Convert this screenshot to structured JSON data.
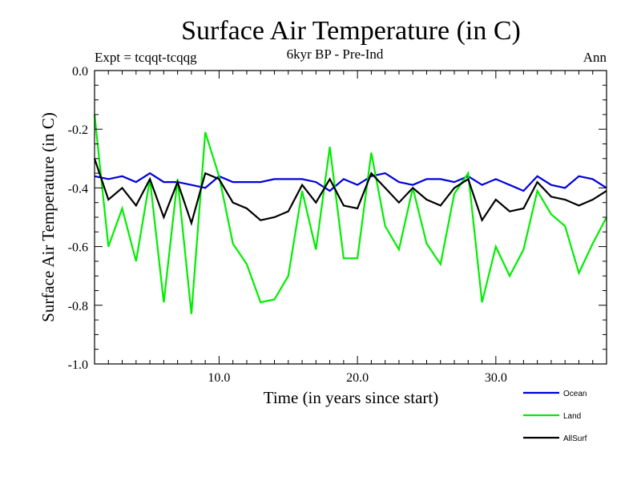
{
  "chart_data": {
    "type": "line",
    "title": "Surface Air Temperature (in C)",
    "subtitle": "6kyr BP - Pre-Ind",
    "expt_label": "Expt = tcqqt-tcqqg",
    "season_label": "Ann",
    "xlabel": "Time (in years since start)",
    "ylabel": "Surface Air Temperature (in C)",
    "xlim": [
      1,
      38
    ],
    "ylim": [
      -1.0,
      0.0
    ],
    "x_ticks": [
      {
        "value": 10,
        "label": "10.0"
      },
      {
        "value": 20,
        "label": "20.0"
      },
      {
        "value": 30,
        "label": "30.0"
      }
    ],
    "y_ticks": [
      {
        "value": 0.0,
        "label": "0.0"
      },
      {
        "value": -0.2,
        "label": "-0.2"
      },
      {
        "value": -0.4,
        "label": "-0.4"
      },
      {
        "value": -0.6,
        "label": "-0.6"
      },
      {
        "value": -0.8,
        "label": "-0.8"
      },
      {
        "value": -1.0,
        "label": "-1.0"
      }
    ],
    "grid": false,
    "legend_position": "bottom-right",
    "x": [
      1,
      2,
      3,
      4,
      5,
      6,
      7,
      8,
      9,
      10,
      11,
      12,
      13,
      14,
      15,
      16,
      17,
      18,
      19,
      20,
      21,
      22,
      23,
      24,
      25,
      26,
      27,
      28,
      29,
      30,
      31,
      32,
      33,
      34,
      35,
      36,
      37,
      38
    ],
    "series": [
      {
        "name": "Ocean",
        "color": "#0000dd",
        "values": [
          -0.36,
          -0.37,
          -0.36,
          -0.38,
          -0.35,
          -0.38,
          -0.38,
          -0.39,
          -0.4,
          -0.36,
          -0.38,
          -0.38,
          -0.38,
          -0.37,
          -0.37,
          -0.37,
          -0.38,
          -0.41,
          -0.37,
          -0.39,
          -0.36,
          -0.35,
          -0.38,
          -0.39,
          -0.37,
          -0.37,
          -0.38,
          -0.36,
          -0.39,
          -0.37,
          -0.39,
          -0.41,
          -0.36,
          -0.39,
          -0.4,
          -0.36,
          -0.37,
          -0.4
        ]
      },
      {
        "name": "Land",
        "color": "#00ee00",
        "values": [
          -0.15,
          -0.6,
          -0.47,
          -0.65,
          -0.37,
          -0.79,
          -0.37,
          -0.83,
          -0.21,
          -0.36,
          -0.59,
          -0.66,
          -0.79,
          -0.78,
          -0.7,
          -0.41,
          -0.61,
          -0.26,
          -0.64,
          -0.64,
          -0.28,
          -0.53,
          -0.61,
          -0.4,
          -0.59,
          -0.66,
          -0.42,
          -0.35,
          -0.79,
          -0.6,
          -0.7,
          -0.61,
          -0.41,
          -0.49,
          -0.53,
          -0.69,
          -0.59,
          -0.5
        ]
      },
      {
        "name": "AllSurf",
        "color": "#000000",
        "values": [
          -0.3,
          -0.44,
          -0.4,
          -0.46,
          -0.37,
          -0.5,
          -0.38,
          -0.52,
          -0.35,
          -0.37,
          -0.45,
          -0.47,
          -0.51,
          -0.5,
          -0.48,
          -0.39,
          -0.45,
          -0.37,
          -0.46,
          -0.47,
          -0.35,
          -0.4,
          -0.45,
          -0.4,
          -0.44,
          -0.46,
          -0.4,
          -0.37,
          -0.51,
          -0.44,
          -0.48,
          -0.47,
          -0.38,
          -0.43,
          -0.44,
          -0.46,
          -0.44,
          -0.41
        ]
      }
    ]
  }
}
